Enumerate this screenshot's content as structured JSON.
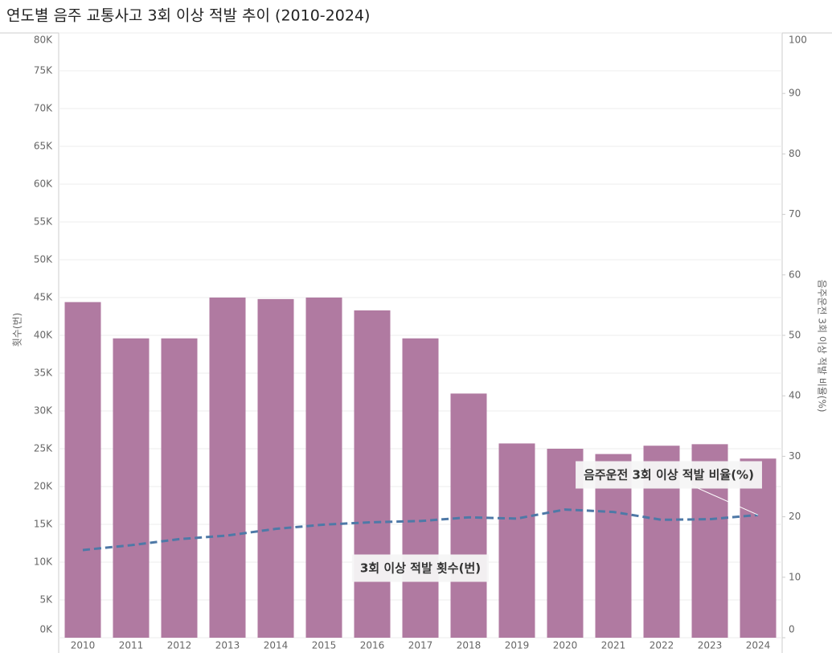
{
  "chart_data": {
    "type": "bar",
    "title": "연도별 음주 교통사고 3회 이상 적발 추이 (2010-2024)",
    "categories": [
      "2010",
      "2011",
      "2012",
      "2013",
      "2014",
      "2015",
      "2016",
      "2017",
      "2018",
      "2019",
      "2020",
      "2021",
      "2022",
      "2023",
      "2024"
    ],
    "series": [
      {
        "name": "3회 이상 적발 횟수(번)",
        "type": "bar",
        "color": "#b07aa1",
        "values": [
          44400,
          39600,
          39600,
          45000,
          44800,
          45000,
          43300,
          39600,
          32300,
          25700,
          25000,
          24300,
          25400,
          25600,
          23700
        ]
      },
      {
        "name": "음주운전 3회 이상 적발 비율(%)",
        "type": "line",
        "axis": "y2",
        "color": "#4e79a7",
        "values": [
          14.5,
          15.3,
          16.3,
          16.9,
          18.0,
          18.7,
          19.1,
          19.3,
          19.9,
          19.7,
          21.2,
          20.8,
          19.5,
          19.6,
          20.3
        ]
      }
    ],
    "ylabel": "횟수(번)",
    "y2label": "음주운전 3회 이상 적발 비율(%)",
    "ylim": [
      0,
      80000
    ],
    "yticks": [
      {
        "value": 0,
        "label": "0K"
      },
      {
        "value": 5000,
        "label": "5K"
      },
      {
        "value": 10000,
        "label": "10K"
      },
      {
        "value": 15000,
        "label": "15K"
      },
      {
        "value": 20000,
        "label": "20K"
      },
      {
        "value": 25000,
        "label": "25K"
      },
      {
        "value": 30000,
        "label": "30K"
      },
      {
        "value": 35000,
        "label": "35K"
      },
      {
        "value": 40000,
        "label": "40K"
      },
      {
        "value": 45000,
        "label": "45K"
      },
      {
        "value": 50000,
        "label": "50K"
      },
      {
        "value": 55000,
        "label": "55K"
      },
      {
        "value": 60000,
        "label": "60K"
      },
      {
        "value": 65000,
        "label": "65K"
      },
      {
        "value": 70000,
        "label": "70K"
      },
      {
        "value": 75000,
        "label": "75K"
      },
      {
        "value": 80000,
        "label": "80K"
      }
    ],
    "y2lim": [
      0,
      100
    ],
    "y2ticks": [
      0,
      10,
      20,
      30,
      40,
      50,
      60,
      70,
      80,
      90,
      100
    ],
    "grid": true
  }
}
